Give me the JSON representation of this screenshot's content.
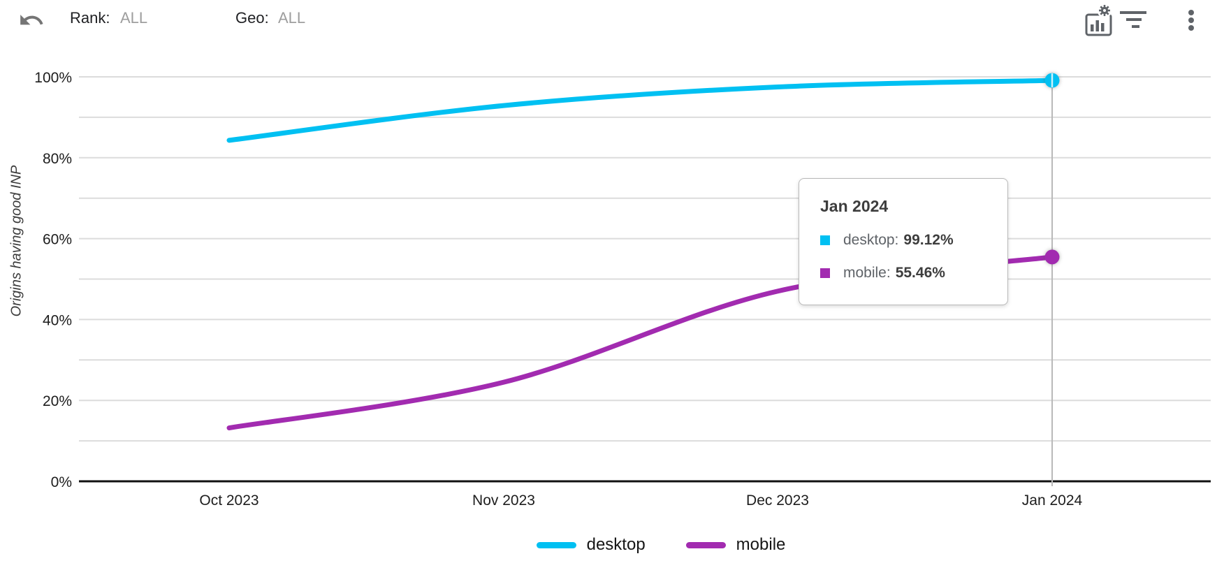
{
  "header": {
    "rank_label": "Rank:",
    "rank_value": "ALL",
    "geo_label": "Geo:",
    "geo_value": "ALL",
    "icons": [
      "undo-icon",
      "chart-settings-icon",
      "filter-icon",
      "more-vertical-icon"
    ]
  },
  "colors": {
    "desktop": "#00c0f2",
    "mobile": "#a22bb0",
    "gridline": "#dcdcdc",
    "crosshair": "#b9b9b9",
    "axis": "#111111",
    "icon_gray": "#5f6368"
  },
  "chart_data": {
    "type": "line",
    "x": [
      "Oct 2023",
      "Nov 2023",
      "Dec 2023",
      "Jan 2024"
    ],
    "series": [
      {
        "name": "desktop",
        "color": "#00c0f2",
        "values": [
          84.3,
          92.9,
          97.5,
          99.12
        ]
      },
      {
        "name": "mobile",
        "color": "#a22bb0",
        "values": [
          13.2,
          24.5,
          47.0,
          55.46
        ]
      }
    ],
    "xlabel": "",
    "ylabel": "Origins having good INP",
    "ylim": [
      0,
      100
    ],
    "grid_step": 10,
    "yticks": [
      {
        "value": 0,
        "label": "0%"
      },
      {
        "value": 20,
        "label": "20%"
      },
      {
        "value": 40,
        "label": "40%"
      },
      {
        "value": 60,
        "label": "60%"
      },
      {
        "value": 80,
        "label": "80%"
      },
      {
        "value": 100,
        "label": "100%"
      }
    ],
    "legend_position": "bottom",
    "crosshair": {
      "x": "Jan 2024"
    }
  },
  "tooltip": {
    "title": "Jan 2024",
    "rows": [
      {
        "series": "desktop",
        "label": "desktop:",
        "value": "99.12%",
        "color": "#00c0f2"
      },
      {
        "series": "mobile",
        "label": "mobile:",
        "value": "55.46%",
        "color": "#a22bb0"
      }
    ]
  },
  "legend": [
    {
      "label": "desktop",
      "color": "#00c0f2"
    },
    {
      "label": "mobile",
      "color": "#a22bb0"
    }
  ]
}
